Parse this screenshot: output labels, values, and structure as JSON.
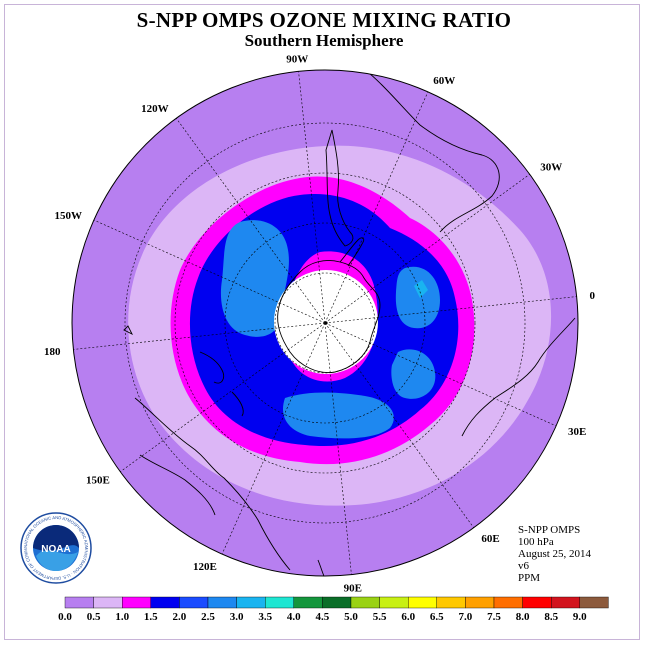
{
  "title": "S-NPP OMPS OZONE MIXING RATIO",
  "subtitle": "Southern Hemisphere",
  "info": {
    "instrument": "S-NPP OMPS",
    "level": "100 hPa",
    "date": "August 25, 2014",
    "version": "v6",
    "units": "PPM"
  },
  "logo": {
    "text": "NOAA",
    "ring_text": "NATIONAL OCEANIC AND ATMOSPHERIC ADMINISTRATION · U.S. DEPARTMENT OF COMMERCE"
  },
  "longitude_labels": [
    {
      "text": "90W",
      "angle": 96
    },
    {
      "text": "60W",
      "angle": 66
    },
    {
      "text": "30W",
      "angle": 36
    },
    {
      "text": "0",
      "angle": 6
    },
    {
      "text": "30E",
      "angle": -24
    },
    {
      "text": "60E",
      "angle": -54
    },
    {
      "text": "90E",
      "angle": -84
    },
    {
      "text": "120E",
      "angle": -114
    },
    {
      "text": "150E",
      "angle": -144
    },
    {
      "text": "180",
      "angle": -174
    },
    {
      "text": "150W",
      "angle": 156
    },
    {
      "text": "120W",
      "angle": 126
    }
  ],
  "chart_data": {
    "type": "heatmap",
    "projection": "polar stereographic, South Pole centered",
    "colorbar": {
      "ticks": [
        "0.0",
        "0.5",
        "1.0",
        "1.5",
        "2.0",
        "2.5",
        "3.0",
        "3.5",
        "4.0",
        "4.5",
        "5.0",
        "5.5",
        "6.0",
        "6.5",
        "7.0",
        "7.5",
        "8.0",
        "8.5",
        "9.0"
      ],
      "colors": [
        "#b77ff0",
        "#dcb6f6",
        "#ff00ff",
        "#0000f0",
        "#1a4bff",
        "#1e88f0",
        "#19b4f0",
        "#1ee6d2",
        "#14963c",
        "#0a6e28",
        "#9ad214",
        "#c8f014",
        "#ffff00",
        "#ffc800",
        "#ffa000",
        "#ff6e00",
        "#ff0000",
        "#d2141e"
      ],
      "extra_end_color": "#8c5a3c"
    },
    "contour_levels": [
      {
        "min": 0.0,
        "max": 0.5,
        "region": "outer mid-latitudes"
      },
      {
        "min": 0.5,
        "max": 1.0,
        "region": "ring around 50-60S"
      },
      {
        "min": 1.0,
        "max": 1.5,
        "region": "ring around 60S and inner collar near pole"
      },
      {
        "min": 1.5,
        "max": 2.0,
        "region": "polar vortex band"
      },
      {
        "min": 2.0,
        "max": 2.5,
        "region": "patches within vortex band"
      }
    ],
    "missing_data": "polar night region near South Pole (white)"
  }
}
